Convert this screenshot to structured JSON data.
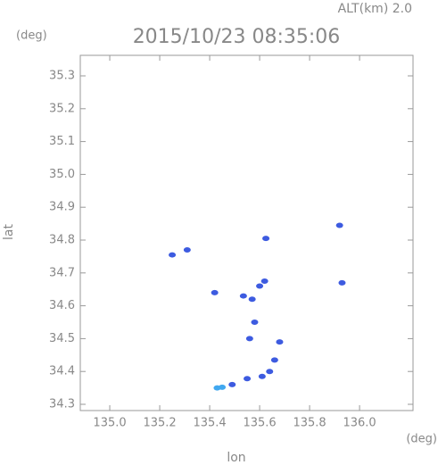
{
  "chart_data": {
    "type": "scatter",
    "title": "2015/10/23 08:35:06",
    "subtitle": "ALT(km) 2.0",
    "y_unit": "(deg)",
    "x_unit": "(deg)",
    "x_label": "lon",
    "y_label": "lat",
    "xlim": [
      134.882,
      136.214
    ],
    "ylim": [
      34.281,
      35.3625
    ],
    "xticks": [
      {
        "value": 135,
        "label": "135.0"
      },
      135.2,
      135.4,
      135.6,
      135.8,
      {
        "value": 136,
        "label": "136.0"
      }
    ],
    "yticks": [
      34.3,
      34.4,
      34.5,
      34.6,
      34.7,
      34.8,
      34.9,
      {
        "value": 35,
        "label": "35.0"
      },
      35.1,
      35.2,
      35.3
    ],
    "series": [
      {
        "color": "#3d5be0",
        "x": [
          135.25,
          135.31,
          135.92,
          135.625,
          135.93,
          135.42,
          135.57,
          135.58,
          135.56,
          135.68,
          135.66,
          135.64,
          135.61,
          135.55,
          135.49,
          135.62,
          135.535,
          135.6
        ],
        "values": [
          34.755,
          34.77,
          34.845,
          34.805,
          34.67,
          34.64,
          34.62,
          34.55,
          34.5,
          34.49,
          34.435,
          34.4,
          34.385,
          34.378,
          34.36,
          34.675,
          34.63,
          34.66
        ]
      },
      {
        "color": "#41a8f0",
        "x": [
          135.43,
          135.45
        ],
        "values": [
          34.35,
          34.352
        ]
      }
    ]
  }
}
